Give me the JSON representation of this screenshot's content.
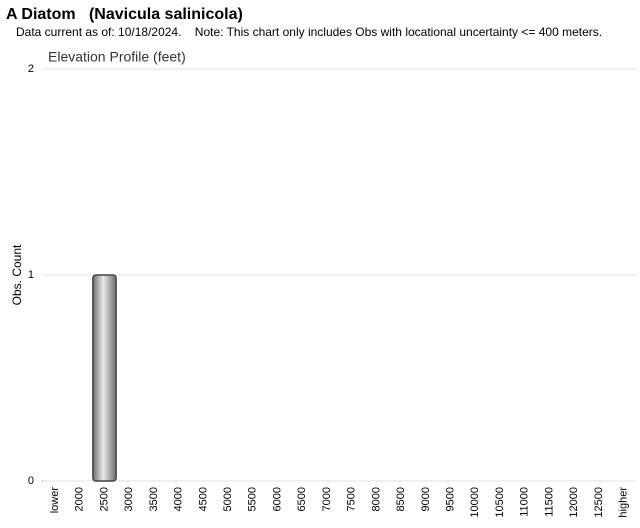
{
  "chart_data": {
    "type": "bar",
    "title": "A Diatom   (Navicula salinicola)",
    "subtitle": "Data current as of: 10/18/2024.    Note: This chart only includes Obs with locational uncertainty <= 400 meters.",
    "chart_title": "Elevation Profile (feet)",
    "y_label": "Obs. Count",
    "categories": [
      "lower",
      "2000",
      "2500",
      "3000",
      "3500",
      "4000",
      "4500",
      "5000",
      "5500",
      "6000",
      "6500",
      "7000",
      "7500",
      "8000",
      "8500",
      "9000",
      "9500",
      "10000",
      "10500",
      "11000",
      "11500",
      "12000",
      "12500",
      "higher"
    ],
    "values": [
      0,
      0,
      1,
      0,
      0,
      0,
      0,
      0,
      0,
      0,
      0,
      0,
      0,
      0,
      0,
      0,
      0,
      0,
      0,
      0,
      0,
      0,
      0,
      0
    ],
    "color": "#a0a0a0",
    "ylim": [
      0,
      2
    ],
    "yticks": [
      0,
      1,
      2
    ],
    "grid": true
  }
}
